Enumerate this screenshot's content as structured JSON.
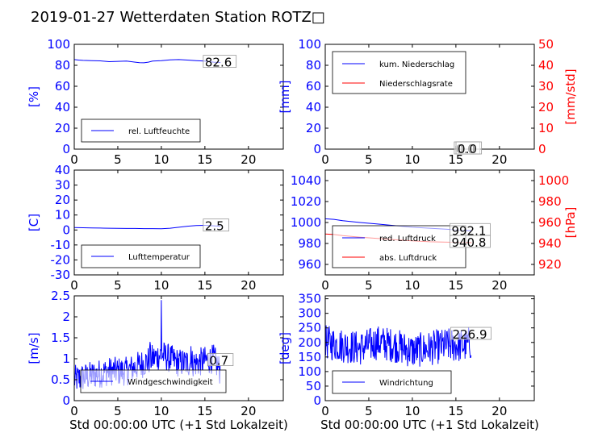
{
  "title": "2019-01-27 Wetterdaten Station ROTZ□",
  "colors": {
    "primary": "#0000ff",
    "secondary": "#ff0000",
    "axis": "#000000",
    "background": "#ffffff"
  },
  "chart_data": [
    {
      "type": "line",
      "panel": "top-left",
      "xlim": [
        0,
        24
      ],
      "xticks": [
        0,
        5,
        10,
        15,
        20
      ],
      "ylim": [
        0,
        100
      ],
      "yticks": [
        0,
        20,
        40,
        60,
        80,
        100
      ],
      "ylabel": "[%]",
      "legend_position": "lower-left",
      "series": [
        {
          "name": "rel. Luftfeuchte",
          "axis": "left",
          "color": "#0000ff",
          "x": [
            0,
            0.5,
            1,
            2,
            3,
            4,
            5,
            6,
            7,
            7.5,
            8,
            8.5,
            9,
            10,
            11,
            12,
            13,
            14,
            15,
            16,
            16.8
          ],
          "y": [
            85.5,
            85,
            84.7,
            84.5,
            84.2,
            83.5,
            83.8,
            84,
            83,
            82.5,
            82.4,
            83,
            84,
            84.5,
            85.2,
            85.5,
            85,
            84.5,
            84,
            83,
            82.6
          ]
        }
      ],
      "annotations": [
        {
          "text": "82.6",
          "x": 15,
          "y": 82.6
        }
      ]
    },
    {
      "type": "line",
      "panel": "top-right",
      "xlim": [
        0,
        24
      ],
      "xticks": [
        0,
        5,
        10,
        15,
        20
      ],
      "ylim": [
        0,
        100
      ],
      "yticks": [
        0,
        20,
        40,
        60,
        80,
        100
      ],
      "ylabel": "[mm]",
      "y2lim": [
        0,
        50
      ],
      "y2ticks": [
        0,
        10,
        20,
        30,
        40,
        50
      ],
      "y2label": "[mm/std]",
      "legend_position": "upper-left",
      "series": [
        {
          "name": "kum. Niederschlag",
          "axis": "left",
          "color": "#0000ff",
          "x": [
            0,
            16.8
          ],
          "y": [
            0,
            0
          ]
        },
        {
          "name": "Niederschlagsrate",
          "axis": "right",
          "color": "#ff0000",
          "x": [
            0,
            16.8
          ],
          "y": [
            0,
            0
          ]
        }
      ],
      "annotations": [
        {
          "text": "0.0",
          "x": 15,
          "y": 0
        },
        {
          "text": "0.0",
          "x": 15.2,
          "y": 0
        }
      ]
    },
    {
      "type": "line",
      "panel": "middle-left",
      "xlim": [
        0,
        24
      ],
      "xticks": [
        0,
        5,
        10,
        15,
        20
      ],
      "ylim": [
        -30,
        40
      ],
      "yticks": [
        -30,
        -20,
        -10,
        0,
        10,
        20,
        30,
        40
      ],
      "ylabel": "[C]",
      "legend_position": "lower-left",
      "series": [
        {
          "name": "Lufttemperatur",
          "color": "#0000ff",
          "x": [
            0,
            1,
            2,
            3,
            4,
            5,
            6,
            7,
            8,
            9,
            10,
            11,
            12,
            13,
            14,
            15,
            16,
            16.8
          ],
          "y": [
            1.6,
            1.5,
            1.4,
            1.3,
            1.2,
            1.1,
            1.0,
            1.0,
            0.9,
            0.9,
            0.8,
            1.2,
            1.8,
            2.5,
            3.0,
            3.1,
            2.8,
            2.5
          ]
        }
      ],
      "annotations": [
        {
          "text": "2.5",
          "x": 15,
          "y": 2.5
        }
      ]
    },
    {
      "type": "line",
      "panel": "middle-right",
      "xlim": [
        0,
        24
      ],
      "xticks": [
        0,
        5,
        10,
        15,
        20
      ],
      "ylim": [
        950,
        1050
      ],
      "yticks": [
        960,
        980,
        1000,
        1020,
        1040
      ],
      "y2lim": [
        910,
        1010
      ],
      "y2ticks": [
        920,
        940,
        960,
        980,
        1000
      ],
      "y2label": "[hPa]",
      "legend_position": "lower-left",
      "series": [
        {
          "name": "red. Luftdruck",
          "axis": "left",
          "color": "#0000ff",
          "x": [
            0,
            1,
            2,
            4,
            6,
            8,
            10,
            12,
            14,
            16,
            16.8
          ],
          "y": [
            1003.5,
            1003,
            1001.8,
            1000,
            998.5,
            997,
            995.5,
            994.5,
            993.5,
            992.4,
            992.1
          ]
        },
        {
          "name": "abs. Luftdruck",
          "axis": "right",
          "color": "#ff0000",
          "x": [
            0,
            1,
            2,
            4,
            6,
            8,
            10,
            12,
            14,
            16,
            16.8
          ],
          "y": [
            949,
            948.5,
            947.5,
            946,
            944.8,
            943.5,
            942.5,
            941.6,
            941.2,
            940.9,
            940.8
          ]
        }
      ],
      "annotations": [
        {
          "text": "992.1",
          "x": 14.5,
          "y": 992.1
        },
        {
          "text": "940.8",
          "x": 14.5,
          "y": 940.8
        }
      ]
    },
    {
      "type": "line",
      "panel": "bottom-left",
      "xlim": [
        0,
        24
      ],
      "xticks": [
        0,
        5,
        10,
        15,
        20
      ],
      "ylim": [
        0,
        2.5
      ],
      "yticks": [
        0,
        0.5,
        1,
        1.5,
        2,
        2.5
      ],
      "ylabel": "[m/s]",
      "xlabel": "Std 00:00:00 UTC (+1 Std Lokalzeit)",
      "legend_position": "lower-center",
      "series": [
        {
          "name": "Windgeschwindigkeit",
          "color": "#0000ff",
          "noisy": true,
          "step": 0.05,
          "segments": [
            [
              0,
              0.5
            ],
            [
              2,
              0.6
            ],
            [
              4,
              0.7
            ],
            [
              6,
              0.7
            ],
            [
              8,
              0.9
            ],
            [
              9,
              1.0
            ],
            [
              10,
              1.1
            ],
            [
              12,
              0.9
            ],
            [
              14,
              0.9
            ],
            [
              16,
              1.0
            ],
            [
              16.8,
              0.7
            ]
          ],
          "amplitude": 0.35,
          "spikes": [
            {
              "x": 10.0,
              "y": 2.4
            },
            {
              "x": 8.7,
              "y": 1.4
            },
            {
              "x": 13.4,
              "y": 1.3
            }
          ]
        }
      ],
      "annotations": [
        {
          "text": "0.7",
          "x": 15.5,
          "y": 0.95
        }
      ]
    },
    {
      "type": "line",
      "panel": "bottom-right",
      "xlim": [
        0,
        24
      ],
      "xticks": [
        0,
        5,
        10,
        15,
        20
      ],
      "ylim": [
        0,
        360
      ],
      "yticks": [
        0,
        50,
        100,
        150,
        200,
        250,
        300,
        350
      ],
      "ylabel": "[deg]",
      "xlabel": "Std 00:00:00 UTC (+1 Std Lokalzeit)",
      "legend_position": "lower-left",
      "series": [
        {
          "name": "Windrichtung",
          "color": "#0000ff",
          "noisy": true,
          "step": 0.05,
          "segments": [
            [
              0,
              200
            ],
            [
              2,
              190
            ],
            [
              4,
              180
            ],
            [
              6,
              200
            ],
            [
              8,
              190
            ],
            [
              10,
              170
            ],
            [
              12,
              180
            ],
            [
              14,
              190
            ],
            [
              16,
              190
            ],
            [
              16.8,
              200
            ]
          ],
          "amplitude": 60
        }
      ],
      "annotations": [
        {
          "text": "226.9",
          "x": 14.6,
          "y": 226.9
        }
      ]
    }
  ]
}
